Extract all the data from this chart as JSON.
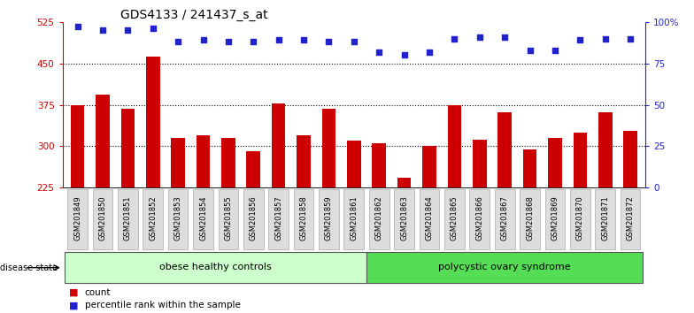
{
  "title": "GDS4133 / 241437_s_at",
  "categories": [
    "GSM201849",
    "GSM201850",
    "GSM201851",
    "GSM201852",
    "GSM201853",
    "GSM201854",
    "GSM201855",
    "GSM201856",
    "GSM201857",
    "GSM201858",
    "GSM201859",
    "GSM201861",
    "GSM201862",
    "GSM201863",
    "GSM201864",
    "GSM201865",
    "GSM201866",
    "GSM201867",
    "GSM201868",
    "GSM201869",
    "GSM201870",
    "GSM201871",
    "GSM201872"
  ],
  "bar_values": [
    375,
    393,
    368,
    462,
    315,
    320,
    315,
    291,
    378,
    320,
    368,
    310,
    305,
    243,
    300,
    375,
    312,
    362,
    295,
    315,
    325,
    362,
    328
  ],
  "dot_values": [
    97,
    95,
    95,
    96,
    88,
    89,
    88,
    88,
    89,
    89,
    88,
    88,
    82,
    80,
    82,
    90,
    91,
    91,
    83,
    83,
    89,
    90,
    90
  ],
  "bar_color": "#cc0000",
  "dot_color": "#2222cc",
  "ylim_left": [
    225,
    525
  ],
  "yticks_left": [
    225,
    300,
    375,
    450,
    525
  ],
  "ylim_right": [
    0,
    100
  ],
  "yticks_right": [
    0,
    25,
    50,
    75,
    100
  ],
  "yticklabels_right": [
    "0",
    "25",
    "50",
    "75",
    "100%"
  ],
  "groups": [
    {
      "label": "obese healthy controls",
      "start": 0,
      "end": 12,
      "color": "#ccffcc"
    },
    {
      "label": "polycystic ovary syndrome",
      "start": 12,
      "end": 23,
      "color": "#55dd55"
    }
  ],
  "disease_state_label": "disease state",
  "legend_bar_label": "count",
  "legend_dot_label": "percentile rank within the sample",
  "bg_color": "#ffffff",
  "title_fontsize": 10,
  "axis_fontsize": 7.5,
  "tick_label_fontsize": 6,
  "legend_fontsize": 7.5
}
